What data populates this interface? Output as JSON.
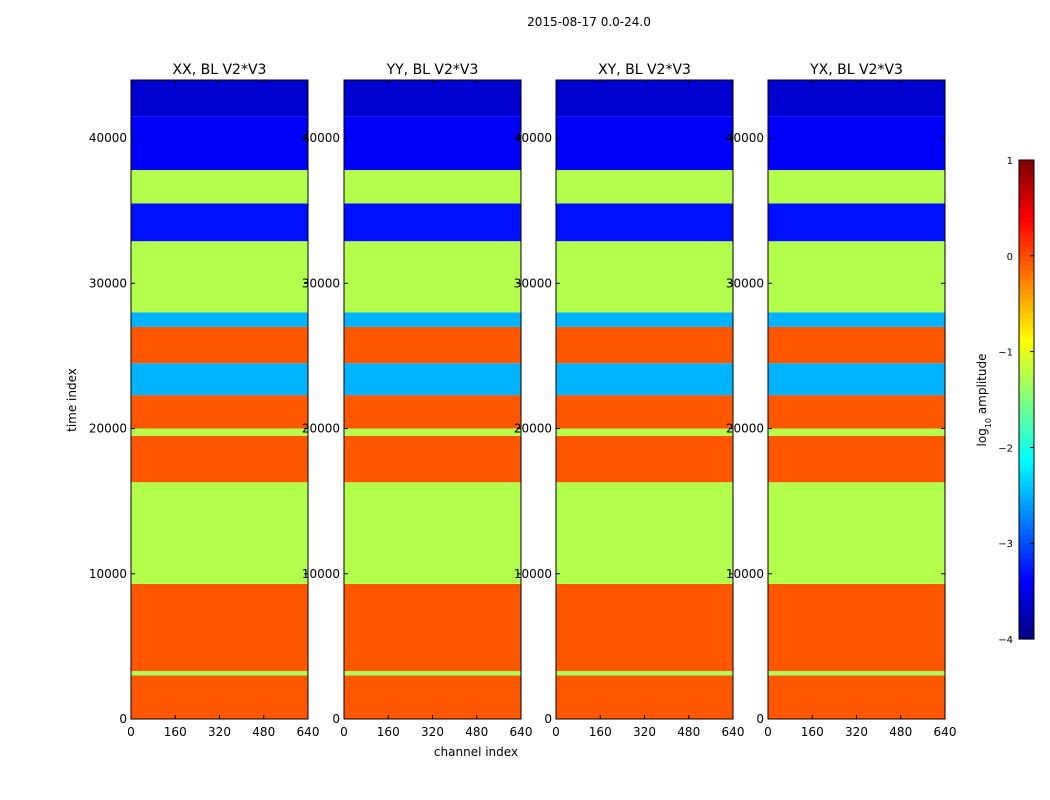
{
  "suptitle": "2015-08-17 0.0-24.0",
  "chart_data": {
    "type": "heatmap",
    "ylabel": "time index",
    "xlabel": "channel index",
    "xlim": [
      0,
      640
    ],
    "ylim": [
      0,
      44000
    ],
    "xticks": [
      "0",
      "160",
      "320",
      "480",
      "640"
    ],
    "yticks": [
      "0",
      "10000",
      "20000",
      "30000",
      "40000"
    ],
    "panels": [
      {
        "title": "XX, BL V2*V3"
      },
      {
        "title": "YY, BL V2*V3"
      },
      {
        "title": "XY, BL V2*V3"
      },
      {
        "title": "YX, BL V2*V3"
      }
    ],
    "colorbar": {
      "label": "log",
      "label_sub": "10",
      "label_rest": " amplitude",
      "range": [
        -4,
        1
      ],
      "ticks": [
        "1",
        "0",
        "−1",
        "−2",
        "−3",
        "−4"
      ],
      "colormap": "jet"
    },
    "bands": [
      {
        "t0": 0,
        "t1": 3000,
        "value": -0.05
      },
      {
        "t0": 3000,
        "t1": 3300,
        "value": -1.3
      },
      {
        "t0": 3300,
        "t1": 9300,
        "value": -0.05
      },
      {
        "t0": 9300,
        "t1": 16300,
        "value": -1.25
      },
      {
        "t0": 16300,
        "t1": 19500,
        "value": -0.05
      },
      {
        "t0": 19500,
        "t1": 20000,
        "value": -1.25
      },
      {
        "t0": 20000,
        "t1": 22300,
        "value": -0.05
      },
      {
        "t0": 22300,
        "t1": 24500,
        "value": -2.5
      },
      {
        "t0": 24500,
        "t1": 27000,
        "value": -0.05
      },
      {
        "t0": 27000,
        "t1": 28000,
        "value": -2.5
      },
      {
        "t0": 28000,
        "t1": 32900,
        "value": -1.25
      },
      {
        "t0": 32900,
        "t1": 35500,
        "value": -3.3
      },
      {
        "t0": 35500,
        "t1": 37800,
        "value": -1.25
      },
      {
        "t0": 37800,
        "t1": 41500,
        "value": -3.4
      },
      {
        "t0": 41500,
        "t1": 44000,
        "value": -3.6
      }
    ]
  }
}
